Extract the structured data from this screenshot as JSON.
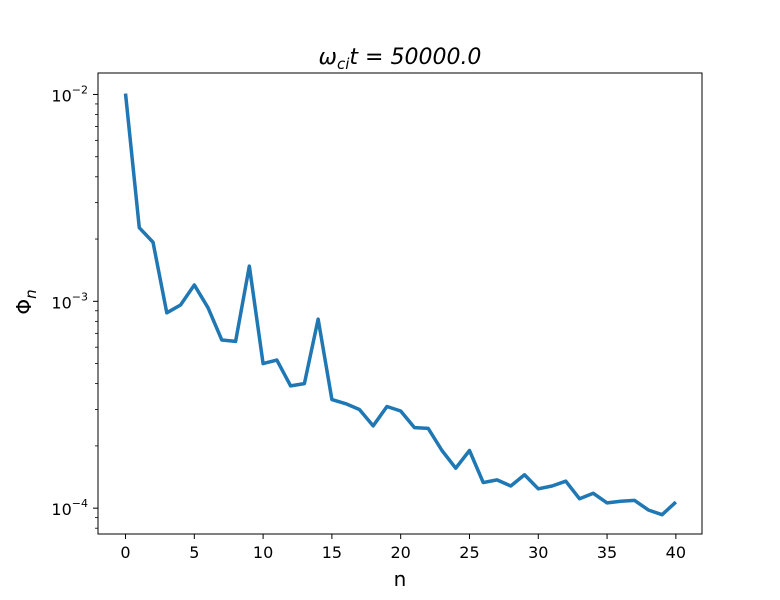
{
  "chart_data": {
    "type": "line",
    "title": "ωcit = 50000.0",
    "title_parts": {
      "omega": "ω",
      "subscript": "ci",
      "rest": "t = 50000.0"
    },
    "xlabel": "n",
    "ylabel": "Φn",
    "ylabel_parts": {
      "main": "Φ",
      "subscript": "n"
    },
    "yscale": "log",
    "xlim": [
      -2,
      41.9
    ],
    "ylim": [
      7.5e-05,
      0.0127
    ],
    "grid": false,
    "x_ticks": [
      0,
      5,
      10,
      15,
      20,
      25,
      30,
      35,
      40
    ],
    "x_tick_labels": [
      "0",
      "5",
      "10",
      "15",
      "20",
      "25",
      "30",
      "35",
      "40"
    ],
    "y_ticks": [
      {
        "value": 0.01,
        "base": "10",
        "exp": "−2"
      },
      {
        "value": 0.001,
        "base": "10",
        "exp": "−3"
      },
      {
        "value": 0.0001,
        "base": "10",
        "exp": "−4"
      }
    ],
    "line_color": "#1f77b4",
    "series": [
      {
        "x": [
          0,
          1,
          2,
          3,
          4,
          5,
          6,
          7,
          8,
          9,
          10,
          11,
          12,
          13,
          14,
          15,
          16,
          17,
          18,
          19,
          20,
          21,
          22,
          23,
          24,
          25,
          26,
          27,
          28,
          29,
          30,
          31,
          32,
          33,
          34,
          35,
          36,
          37,
          38,
          39,
          40
        ],
        "values": [
          0.0101,
          0.00227,
          0.00193,
          0.00088,
          0.00096,
          0.0012,
          0.00093,
          0.00065,
          0.00064,
          0.00148,
          0.0005,
          0.00052,
          0.00039,
          0.0004,
          0.00082,
          0.000335,
          0.00032,
          0.0003,
          0.00025,
          0.00031,
          0.000295,
          0.000245,
          0.000243,
          0.00019,
          0.000156,
          0.00019,
          0.000133,
          0.000137,
          0.000128,
          0.000145,
          0.000124,
          0.000128,
          0.000135,
          0.000111,
          0.000118,
          0.000106,
          0.000108,
          0.000109,
          9.8e-05,
          9.3e-05,
          0.000107
        ]
      }
    ]
  }
}
